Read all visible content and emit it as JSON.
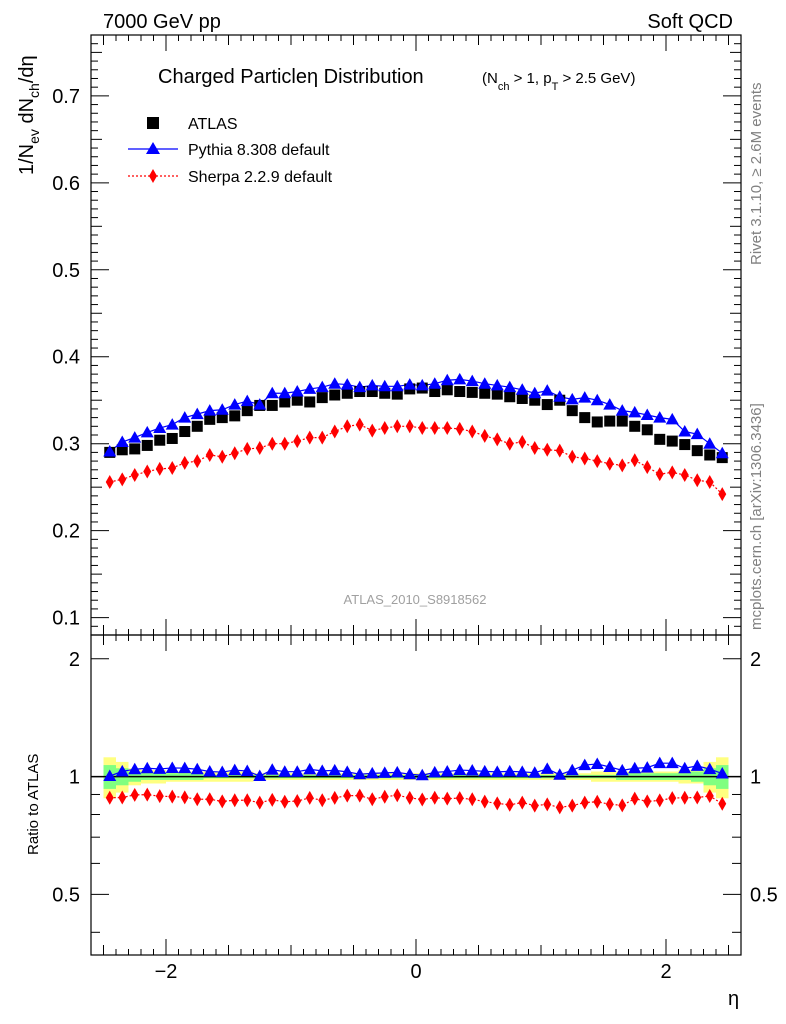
{
  "header": {
    "left": "7000 GeV pp",
    "right": "Soft QCD"
  },
  "side": {
    "rivet": "Rivet 3.1.10, ≥ 2.6M events",
    "mcplots": "mcplots.cern.ch [arXiv:1306.3436]"
  },
  "chart_data": [
    {
      "type": "scatter",
      "title": "Charged Particleη Distribution",
      "subtitle": "(N_ch > 1, p_T > 2.5 GeV)",
      "ylabel": "1/N_ev dN_ch/dη",
      "xlabel": "η",
      "xlim": [
        -2.6,
        2.6
      ],
      "ylim": [
        0.08,
        0.77
      ],
      "yticks": [
        "0.1",
        "0.2",
        "0.3",
        "0.4",
        "0.5",
        "0.6",
        "0.7"
      ],
      "watermark": "ATLAS_2010_S8918562",
      "legend_position": "top-left",
      "x": [
        -2.45,
        -2.35,
        -2.25,
        -2.15,
        -2.05,
        -1.95,
        -1.85,
        -1.75,
        -1.65,
        -1.55,
        -1.45,
        -1.35,
        -1.25,
        -1.15,
        -1.05,
        -0.95,
        -0.85,
        -0.75,
        -0.65,
        -0.55,
        -0.45,
        -0.35,
        -0.25,
        -0.15,
        -0.05,
        0.05,
        0.15,
        0.25,
        0.35,
        0.45,
        0.55,
        0.65,
        0.75,
        0.85,
        0.95,
        1.05,
        1.15,
        1.25,
        1.35,
        1.45,
        1.55,
        1.65,
        1.75,
        1.85,
        1.95,
        2.05,
        2.15,
        2.25,
        2.35,
        2.45
      ],
      "series": [
        {
          "name": "ATLAS",
          "marker": "square",
          "color": "#000000",
          "values": [
            0.29,
            0.293,
            0.294,
            0.298,
            0.304,
            0.306,
            0.314,
            0.32,
            0.328,
            0.33,
            0.332,
            0.338,
            0.344,
            0.344,
            0.348,
            0.35,
            0.348,
            0.353,
            0.356,
            0.358,
            0.36,
            0.36,
            0.358,
            0.357,
            0.363,
            0.364,
            0.36,
            0.362,
            0.36,
            0.359,
            0.358,
            0.357,
            0.354,
            0.352,
            0.35,
            0.345,
            0.35,
            0.338,
            0.33,
            0.325,
            0.326,
            0.326,
            0.32,
            0.316,
            0.305,
            0.303,
            0.299,
            0.292,
            0.287,
            0.284
          ]
        },
        {
          "name": "Pythia 8.308 default",
          "marker": "triangle",
          "color": "#0000ff",
          "values": [
            0.291,
            0.302,
            0.307,
            0.313,
            0.318,
            0.322,
            0.33,
            0.334,
            0.338,
            0.339,
            0.345,
            0.349,
            0.345,
            0.358,
            0.358,
            0.36,
            0.363,
            0.365,
            0.369,
            0.368,
            0.365,
            0.367,
            0.366,
            0.366,
            0.368,
            0.367,
            0.369,
            0.373,
            0.374,
            0.372,
            0.369,
            0.367,
            0.365,
            0.362,
            0.358,
            0.361,
            0.354,
            0.351,
            0.353,
            0.35,
            0.345,
            0.338,
            0.336,
            0.333,
            0.33,
            0.328,
            0.314,
            0.311,
            0.3,
            0.289
          ]
        },
        {
          "name": "Sherpa 2.2.9 default",
          "marker": "diamond",
          "color": "#ff0000",
          "values": [
            0.256,
            0.259,
            0.264,
            0.268,
            0.271,
            0.272,
            0.278,
            0.28,
            0.287,
            0.285,
            0.289,
            0.294,
            0.295,
            0.3,
            0.3,
            0.303,
            0.307,
            0.307,
            0.314,
            0.32,
            0.322,
            0.315,
            0.318,
            0.32,
            0.32,
            0.318,
            0.318,
            0.318,
            0.317,
            0.314,
            0.309,
            0.305,
            0.3,
            0.302,
            0.295,
            0.293,
            0.292,
            0.285,
            0.283,
            0.28,
            0.277,
            0.275,
            0.281,
            0.273,
            0.265,
            0.267,
            0.264,
            0.258,
            0.256,
            0.242
          ]
        }
      ]
    },
    {
      "type": "scatter",
      "ylabel": "Ratio to ATLAS",
      "xlabel": "η",
      "xlim": [
        -2.6,
        2.6
      ],
      "ylim": [
        0.35,
        2.3
      ],
      "yticks": [
        "0.5",
        "1",
        "2"
      ],
      "xticks": [
        "−2",
        "0",
        "2"
      ],
      "reference": 1.0,
      "band_outer_color": "#ffff80",
      "band_inner_color": "#80ff80",
      "band_outer": [
        0.12,
        0.09,
        0.05,
        0.04,
        0.04,
        0.03,
        0.03,
        0.03,
        0.03,
        0.03,
        0.03,
        0.03,
        0.02,
        0.02,
        0.02,
        0.02,
        0.02,
        0.02,
        0.02,
        0.02,
        0.02,
        0.02,
        0.02,
        0.02,
        0.02,
        0.02,
        0.02,
        0.02,
        0.02,
        0.02,
        0.02,
        0.02,
        0.02,
        0.02,
        0.02,
        0.02,
        0.02,
        0.02,
        0.02,
        0.03,
        0.03,
        0.03,
        0.03,
        0.03,
        0.03,
        0.03,
        0.04,
        0.04,
        0.09,
        0.12
      ],
      "band_inner": [
        0.07,
        0.05,
        0.03,
        0.02,
        0.02,
        0.02,
        0.02,
        0.02,
        0.01,
        0.01,
        0.01,
        0.01,
        0.01,
        0.01,
        0.01,
        0.01,
        0.01,
        0.01,
        0.01,
        0.01,
        0.01,
        0.01,
        0.01,
        0.01,
        0.01,
        0.01,
        0.01,
        0.01,
        0.01,
        0.01,
        0.01,
        0.01,
        0.01,
        0.01,
        0.01,
        0.01,
        0.01,
        0.01,
        0.01,
        0.01,
        0.01,
        0.02,
        0.02,
        0.02,
        0.02,
        0.02,
        0.02,
        0.03,
        0.05,
        0.07
      ],
      "x": [
        -2.45,
        -2.35,
        -2.25,
        -2.15,
        -2.05,
        -1.95,
        -1.85,
        -1.75,
        -1.65,
        -1.55,
        -1.45,
        -1.35,
        -1.25,
        -1.15,
        -1.05,
        -0.95,
        -0.85,
        -0.75,
        -0.65,
        -0.55,
        -0.45,
        -0.35,
        -0.25,
        -0.15,
        -0.05,
        0.05,
        0.15,
        0.25,
        0.35,
        0.45,
        0.55,
        0.65,
        0.75,
        0.85,
        0.95,
        1.05,
        1.15,
        1.25,
        1.35,
        1.45,
        1.55,
        1.65,
        1.75,
        1.85,
        1.95,
        2.05,
        2.15,
        2.25,
        2.35,
        2.45
      ],
      "series": [
        {
          "name": "Pythia 8.308 default",
          "marker": "triangle",
          "color": "#0000ff",
          "values": [
            1.003,
            1.031,
            1.044,
            1.05,
            1.046,
            1.052,
            1.051,
            1.044,
            1.03,
            1.027,
            1.039,
            1.033,
            1.003,
            1.041,
            1.029,
            1.029,
            1.043,
            1.034,
            1.037,
            1.028,
            1.014,
            1.019,
            1.022,
            1.025,
            1.014,
            1.008,
            1.025,
            1.03,
            1.039,
            1.036,
            1.031,
            1.028,
            1.031,
            1.028,
            1.023,
            1.046,
            1.011,
            1.038,
            1.07,
            1.077,
            1.058,
            1.037,
            1.05,
            1.054,
            1.082,
            1.082,
            1.05,
            1.065,
            1.045,
            1.018
          ]
        },
        {
          "name": "Sherpa 2.2.9 default",
          "marker": "diamond",
          "color": "#ff0000",
          "values": [
            0.883,
            0.884,
            0.898,
            0.899,
            0.891,
            0.889,
            0.885,
            0.875,
            0.875,
            0.864,
            0.87,
            0.87,
            0.858,
            0.872,
            0.862,
            0.866,
            0.882,
            0.87,
            0.882,
            0.894,
            0.894,
            0.875,
            0.888,
            0.896,
            0.882,
            0.874,
            0.883,
            0.878,
            0.881,
            0.875,
            0.863,
            0.854,
            0.847,
            0.858,
            0.843,
            0.849,
            0.834,
            0.843,
            0.858,
            0.862,
            0.85,
            0.844,
            0.878,
            0.864,
            0.869,
            0.881,
            0.883,
            0.884,
            0.892,
            0.852
          ]
        }
      ]
    }
  ]
}
